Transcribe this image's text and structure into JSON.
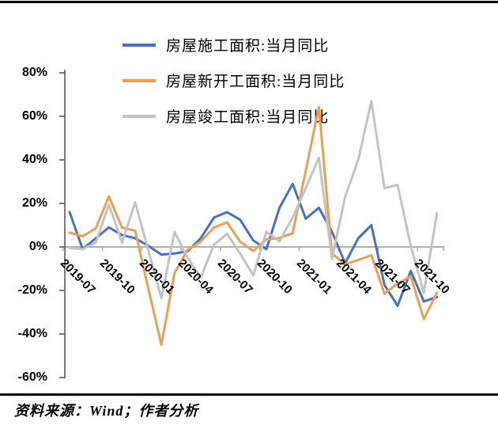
{
  "footer": {
    "source_text": "资料来源：Wind；作者分析"
  },
  "chart_data": {
    "type": "line",
    "x": [
      "2019-07",
      "2019-08",
      "2019-09",
      "2019-10",
      "2019-11",
      "2019-12",
      "2020-01",
      "2020-02",
      "2020-03",
      "2020-04",
      "2020-05",
      "2020-06",
      "2020-07",
      "2020-08",
      "2020-09",
      "2020-10",
      "2020-11",
      "2020-12",
      "2021-01",
      "2021-02",
      "2021-03",
      "2021-04",
      "2021-05",
      "2021-06",
      "2021-07",
      "2021-08",
      "2021-09",
      "2021-10",
      "2021-11"
    ],
    "x_tick_labels": [
      "2019-07",
      "2019-10",
      "2020-01",
      "2020-04",
      "2020-07",
      "2020-10",
      "2021-01",
      "2021-04",
      "2021-07",
      "2021-10"
    ],
    "y_ticks": [
      "80%",
      "60%",
      "40%",
      "20%",
      "0%",
      "-20%",
      "-40%",
      "-60%"
    ],
    "y_tick_values": [
      80,
      60,
      40,
      20,
      0,
      -20,
      -40,
      -60
    ],
    "ylim": [
      -60,
      80
    ],
    "grid": false,
    "legend_position": "top-center",
    "axis_color": "#595959",
    "zero_line_color": "#a6a6a6",
    "series": [
      {
        "name": "房屋施工面积:当月同比",
        "color": "#4472C4",
        "values": [
          16,
          -1,
          4,
          9,
          5.5,
          4,
          0.5,
          -3.5,
          -3,
          -2,
          4,
          13.5,
          16,
          12.5,
          3,
          -1,
          18,
          29,
          13,
          18,
          7,
          -7.5,
          4,
          10,
          -17.5,
          -27,
          -11,
          -25,
          -23
        ]
      },
      {
        "name": "房屋新开工面积:当月同比",
        "color": "#EE9D54",
        "values": [
          6.6,
          4.9,
          8.6,
          23.2,
          8.9,
          7.4,
          -19,
          -44.9,
          -12,
          -1.3,
          2.5,
          8.9,
          11.3,
          2.4,
          -1.9,
          3.5,
          4.1,
          6.3,
          35,
          64.3,
          -3,
          -8,
          -6,
          -3.8,
          -21.5,
          -16.8,
          -13.5,
          -33.1,
          -21
        ]
      },
      {
        "name": "房屋竣工面积:当月同比",
        "color": "#C3C3C3",
        "values": [
          -0.5,
          -1,
          2,
          19.5,
          2,
          20.5,
          -1.5,
          -23.5,
          7,
          -5,
          -14,
          1,
          6,
          -3,
          -13,
          7,
          2.5,
          13.5,
          27,
          41,
          -5.5,
          23,
          40,
          67,
          27,
          28.5,
          0.5,
          -21,
          15.5
        ]
      }
    ]
  }
}
